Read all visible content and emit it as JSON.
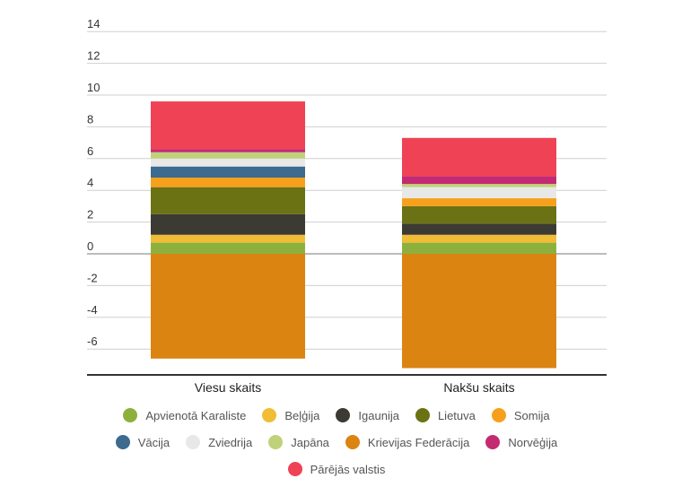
{
  "chart_data": {
    "type": "bar",
    "stacked": true,
    "categories": [
      "Viesu skaits",
      "Nakšu skaits"
    ],
    "ylim": [
      -7.5,
      14
    ],
    "yticks": [
      -6,
      -4,
      -2,
      0,
      2,
      4,
      6,
      8,
      10,
      12,
      14
    ],
    "ytick_labels": [
      "-6",
      "-4",
      "-2",
      "0",
      "2",
      "4",
      "6",
      "8",
      "10",
      "12",
      "14"
    ],
    "grid": true,
    "legend_position": "bottom",
    "series": [
      {
        "name": "Apvienotā Karaliste",
        "color": "#8db03d",
        "values": [
          0.7,
          0.7
        ]
      },
      {
        "name": "Beļģija",
        "color": "#f0bd35",
        "values": [
          0.5,
          0.5
        ]
      },
      {
        "name": "Igaunija",
        "color": "#3b3a33",
        "values": [
          1.3,
          0.7
        ]
      },
      {
        "name": "Lietuva",
        "color": "#6b7214",
        "values": [
          1.7,
          1.1
        ]
      },
      {
        "name": "Somija",
        "color": "#f6a01c",
        "values": [
          0.6,
          0.5
        ]
      },
      {
        "name": "Vācija",
        "color": "#3d6a8f",
        "values": [
          0.7,
          0.0
        ]
      },
      {
        "name": "Zviedrija",
        "color": "#e8e8e6",
        "values": [
          0.5,
          0.7
        ]
      },
      {
        "name": "Japāna",
        "color": "#bfd27a",
        "values": [
          0.4,
          0.2
        ]
      },
      {
        "name": "Krievijas Federācija",
        "color": "#db8412",
        "values": [
          -6.6,
          -7.2
        ]
      },
      {
        "name": "Norvēģija",
        "color": "#c42a72",
        "values": [
          0.2,
          0.5
        ]
      },
      {
        "name": "Pārējās valstis",
        "color": "#ef4255",
        "values": [
          3.0,
          2.4
        ]
      }
    ]
  }
}
